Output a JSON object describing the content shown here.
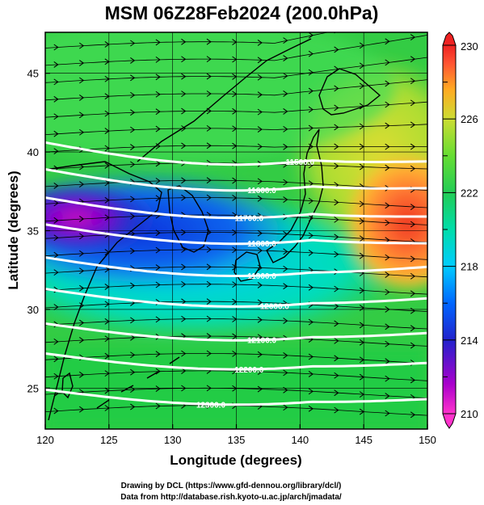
{
  "chart_data": {
    "type": "heatmap",
    "title": "MSM 06Z28Feb2024 (200.0hPa)",
    "xlabel": "Longitude (degrees)",
    "ylabel": "Latitude  (degrees)",
    "xlim": [
      120,
      150
    ],
    "ylim": [
      22.4,
      47.6
    ],
    "x_ticks": [
      120,
      125,
      130,
      135,
      140,
      145,
      150
    ],
    "y_ticks": [
      25,
      30,
      35,
      40,
      45
    ],
    "colorbar": {
      "range": [
        210,
        230
      ],
      "ticks": [
        210,
        214,
        218,
        222,
        226,
        230
      ],
      "colors": [
        "#ff33cc",
        "#aa00cc",
        "#2222cc",
        "#0066ff",
        "#00ccff",
        "#00ddaa",
        "#22cc55",
        "#66dd33",
        "#ccdd33",
        "#ffaa22",
        "#ff5533",
        "#ee2222"
      ]
    },
    "contour_labels": [
      "11500.0",
      "11600.0",
      "11700.0",
      "11800.0",
      "11900.0",
      "12000.0",
      "12100.0",
      "12200.0",
      "12300.0"
    ],
    "colors": {
      "background": "#ffffff",
      "contour": "#ffffff",
      "vector": "#000000",
      "coastline": "#000000"
    }
  },
  "credits": {
    "line1": "Drawing by DCL (https://www.gfd-dennou.org/library/dcl/)",
    "line2": "Data from http://database.rish.kyoto-u.ac.jp/arch/jmadata/"
  }
}
